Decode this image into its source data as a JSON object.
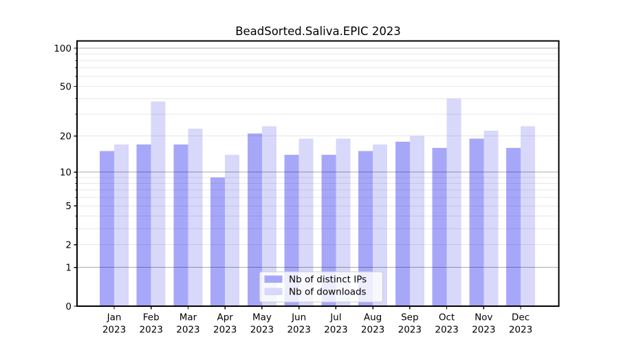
{
  "figure": {
    "title": "BeadSorted.Saliva.EPIC 2023"
  },
  "colors": {
    "distinct_ips_bar": "#a7a7fa",
    "downloads_bar": "#d8d8fa",
    "grid_major": "rgba(0,0,0,0.34)",
    "grid_minor": "rgba(0,0,0,0.095)",
    "axis": "#000000",
    "legend_bg": "rgba(255,255,255,0.8)",
    "legend_border": "#cccccc"
  },
  "chart_data": {
    "type": "bar",
    "title": "BeadSorted.Saliva.EPIC 2023",
    "categories": [
      "Jan 2023",
      "Feb 2023",
      "Mar 2023",
      "Apr 2023",
      "May 2023",
      "Jun 2023",
      "Jul 2023",
      "Aug 2023",
      "Sep 2023",
      "Oct 2023",
      "Nov 2023",
      "Dec 2023"
    ],
    "month_labels": [
      "Jan",
      "Feb",
      "Mar",
      "Apr",
      "May",
      "Jun",
      "Jul",
      "Aug",
      "Sep",
      "Oct",
      "Nov",
      "Dec"
    ],
    "year_label": "2023",
    "series": [
      {
        "name": "Nb of distinct IPs",
        "color": "#a7a7fa",
        "values": [
          15,
          17,
          17,
          9,
          21,
          14,
          14,
          15,
          18,
          16,
          19,
          16
        ]
      },
      {
        "name": "Nb of downloads",
        "color": "#d8d8fa",
        "values": [
          17,
          38,
          23,
          14,
          24,
          19,
          19,
          17,
          20,
          40,
          22,
          24
        ]
      }
    ],
    "xlabel": "",
    "ylabel": "",
    "y_scale": "log1p",
    "y_ticks": [
      0,
      1,
      2,
      5,
      10,
      20,
      50,
      100
    ],
    "y_major_grid": [
      1,
      10,
      100
    ],
    "y_minor_grid": [
      2,
      3,
      4,
      5,
      6,
      7,
      8,
      9,
      20,
      30,
      40,
      50,
      60,
      70,
      80,
      90
    ],
    "y_minor_ticks": [
      3,
      4,
      6,
      7,
      8,
      9,
      30,
      40,
      60,
      70,
      80,
      90
    ],
    "ylim": [
      0,
      115
    ],
    "grid": true,
    "legend_position": "lower center"
  }
}
